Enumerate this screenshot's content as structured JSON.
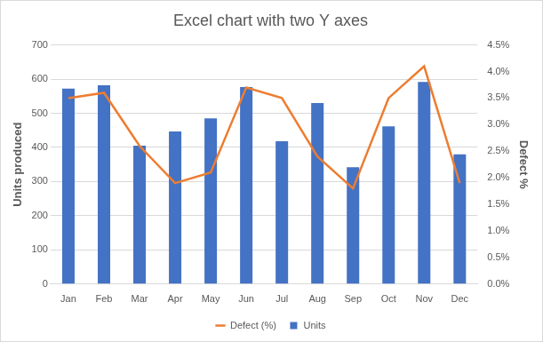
{
  "chart_data": {
    "type": "bar",
    "title": "Excel chart with two Y axes",
    "categories": [
      "Jan",
      "Feb",
      "Mar",
      "Apr",
      "May",
      "Jun",
      "Jul",
      "Aug",
      "Sep",
      "Oct",
      "Nov",
      "Dec"
    ],
    "series": [
      {
        "name": "Units",
        "type": "bar",
        "color": "#4472c4",
        "axis": "y",
        "values": [
          572,
          582,
          405,
          447,
          485,
          577,
          418,
          530,
          342,
          462,
          592,
          380
        ]
      },
      {
        "name": "Defect (%)",
        "type": "line",
        "color": "#ed7d31",
        "axis": "y2",
        "marker": "none",
        "line_style": "solid",
        "values": [
          3.5,
          3.6,
          2.6,
          1.9,
          2.1,
          3.7,
          3.5,
          2.4,
          1.8,
          3.5,
          4.1,
          1.9
        ]
      }
    ],
    "y_label": "Units produced",
    "y2_label": "Defect %",
    "ylim": [
      0,
      700
    ],
    "yticks": [
      0,
      100,
      200,
      300,
      400,
      500,
      600,
      700
    ],
    "y2lim": [
      0,
      4.5
    ],
    "y2ticks": [
      {
        "value": 0,
        "label": "0.0%"
      },
      {
        "value": 0.5,
        "label": "0.5%"
      },
      {
        "value": 1,
        "label": "1.0%"
      },
      {
        "value": 1.5,
        "label": "1.5%"
      },
      {
        "value": 2,
        "label": "2.0%"
      },
      {
        "value": 2.5,
        "label": "2.5%"
      },
      {
        "value": 3,
        "label": "3.0%"
      },
      {
        "value": 3.5,
        "label": "3.5%"
      },
      {
        "value": 4,
        "label": "4.0%"
      },
      {
        "value": 4.5,
        "label": "4.5%"
      }
    ],
    "grid": true,
    "legend": "bottom"
  }
}
